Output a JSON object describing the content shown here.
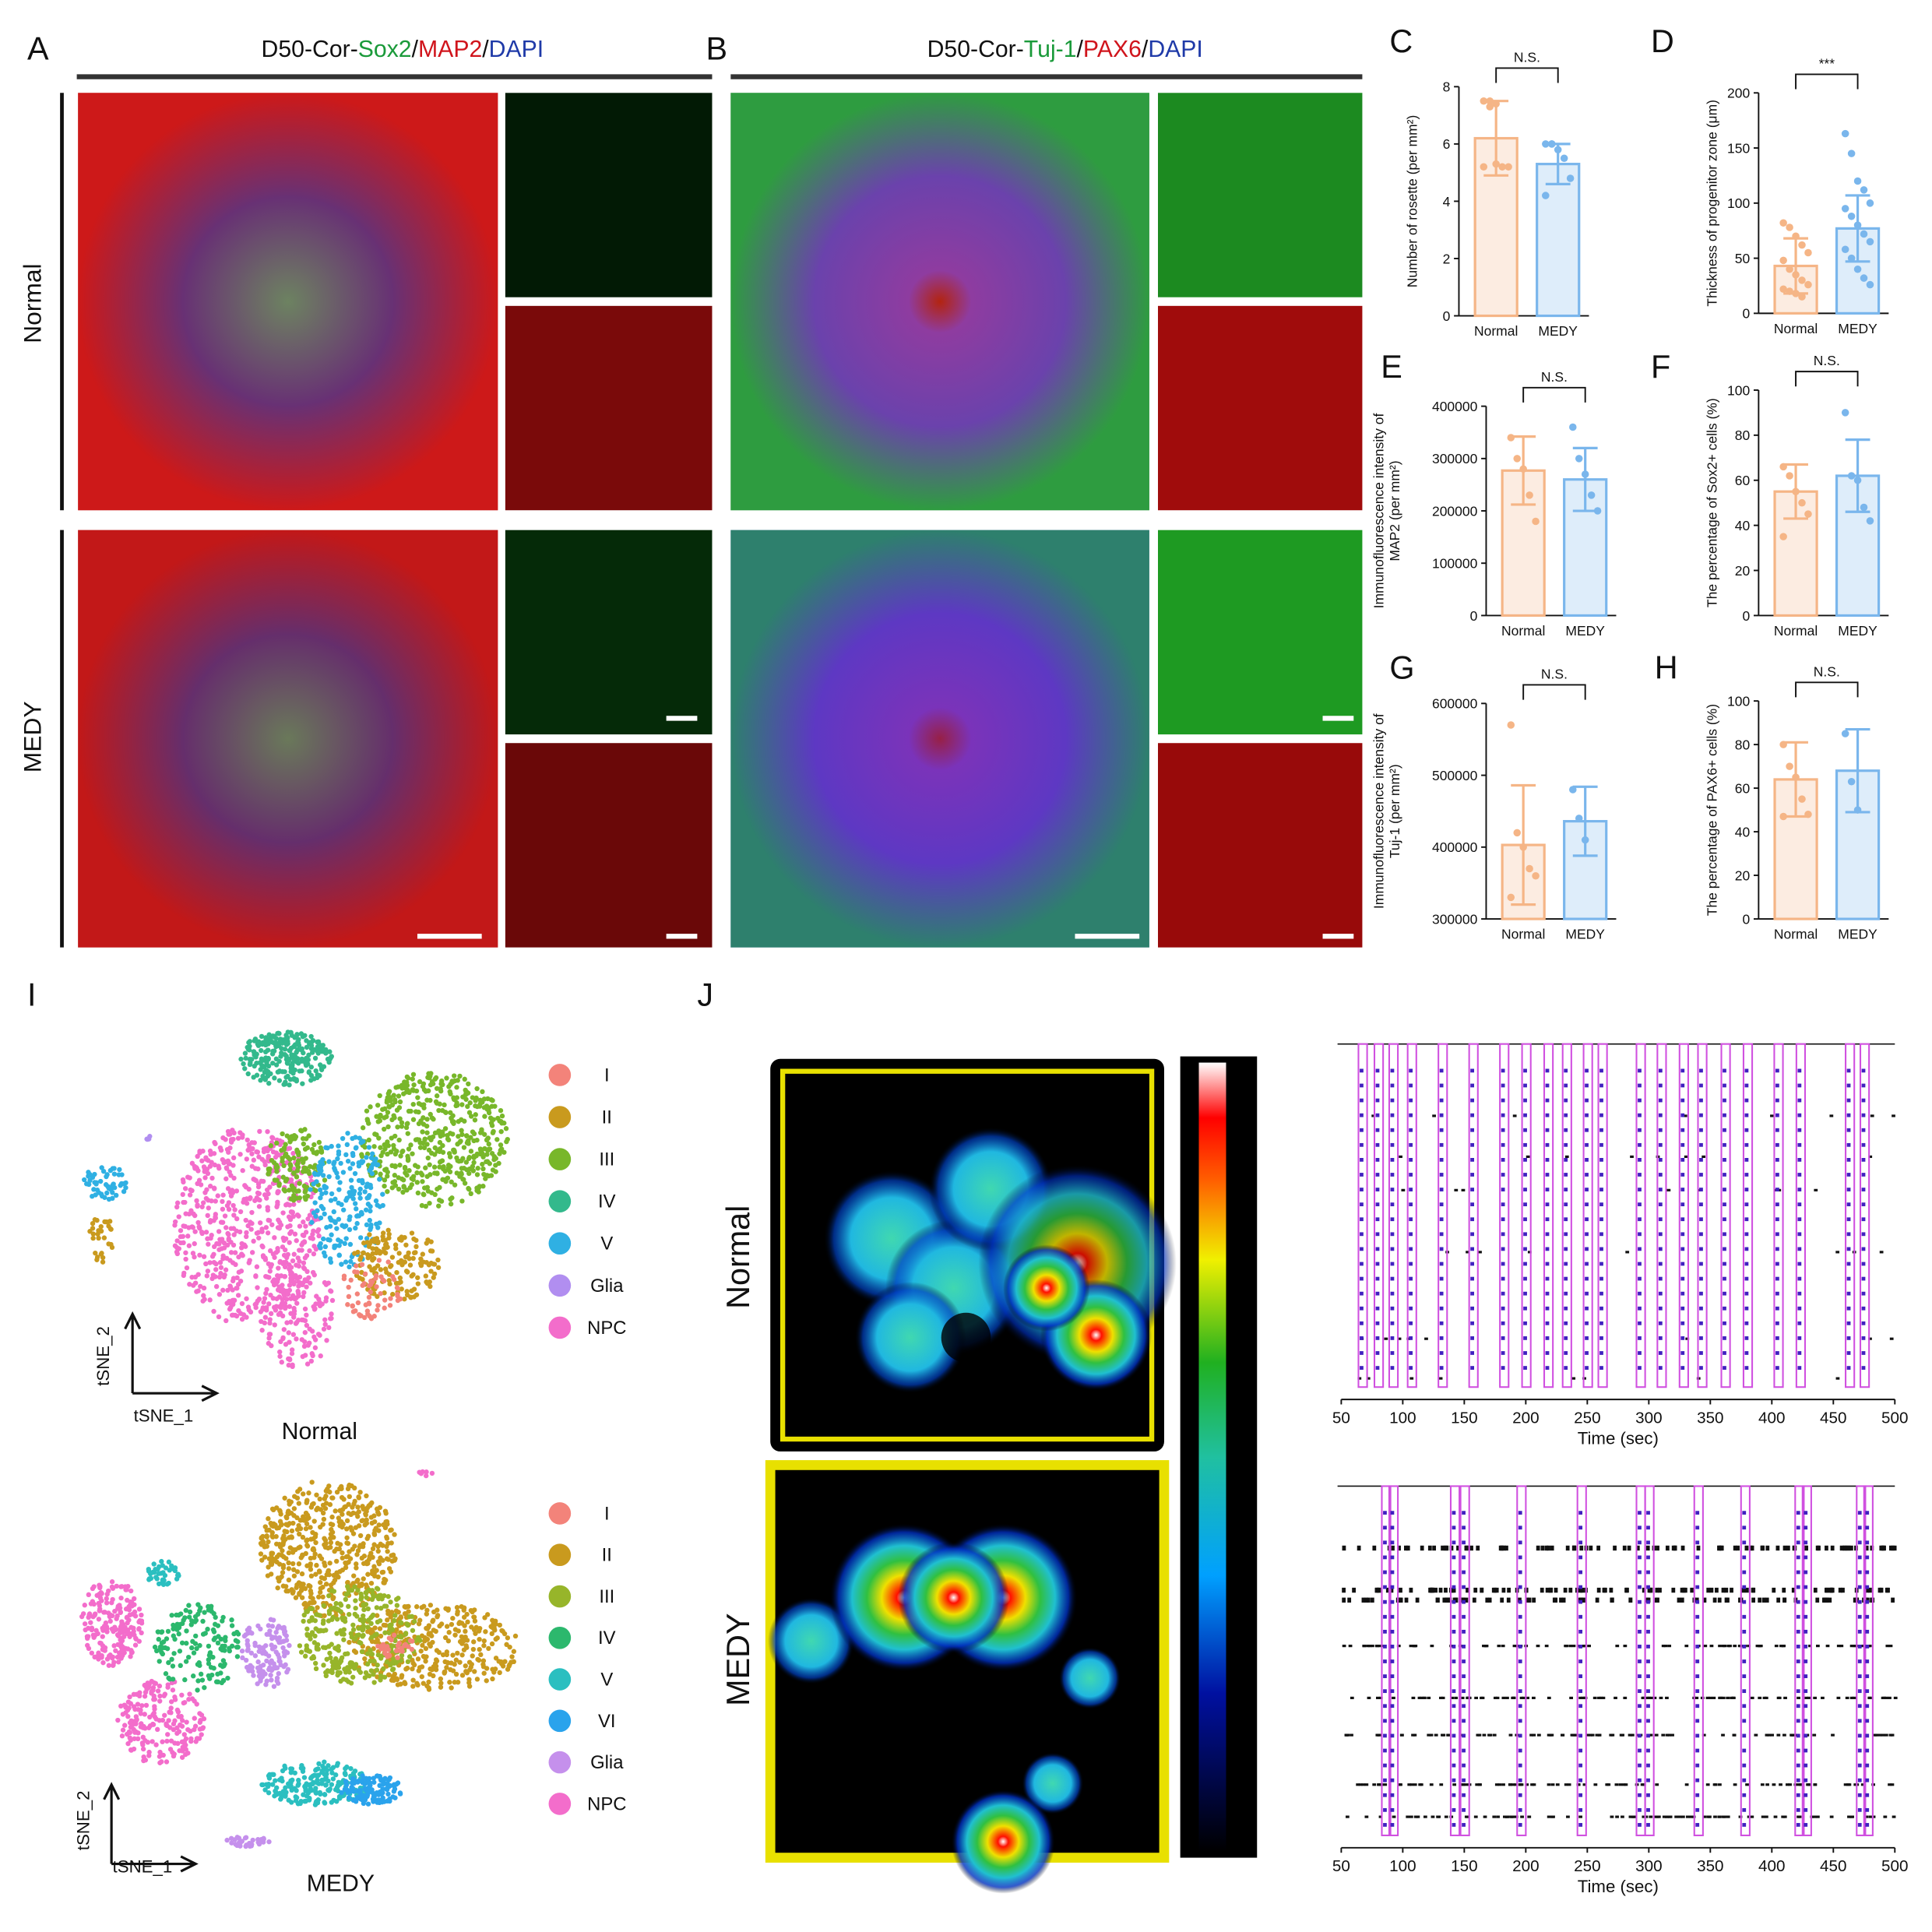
{
  "panel_labels": [
    "A",
    "B",
    "C",
    "D",
    "E",
    "F",
    "G",
    "H",
    "I",
    "J"
  ],
  "panel_a": {
    "title": [
      {
        "text": "D50-Cor-",
        "color": "#111111"
      },
      {
        "text": "Sox2",
        "color": "#1a9a3a"
      },
      {
        "text": "/",
        "color": "#111111"
      },
      {
        "text": "MAP2",
        "color": "#d0141c"
      },
      {
        "text": "/",
        "color": "#111111"
      },
      {
        "text": "DAPI",
        "color": "#1f3aa8"
      }
    ],
    "rows": [
      "Normal",
      "MEDY"
    ]
  },
  "panel_b": {
    "title": [
      {
        "text": "D50-Cor-",
        "color": "#111111"
      },
      {
        "text": "Tuj-1",
        "color": "#1a9a3a"
      },
      {
        "text": "/",
        "color": "#111111"
      },
      {
        "text": "PAX6",
        "color": "#d0141c"
      },
      {
        "text": "/",
        "color": "#111111"
      },
      {
        "text": "DAPI",
        "color": "#1f3aa8"
      }
    ]
  },
  "chart_data": [
    {
      "type": "bar",
      "ylabel": "Number of rosette (per mm²)",
      "categories": [
        "Normal",
        "MEDY"
      ],
      "colors": [
        "#f5b586",
        "#7ab6ec"
      ],
      "values": [
        6.2,
        5.3
      ],
      "errors": [
        1.3,
        0.7
      ],
      "points": [
        [
          7.5,
          7.5,
          7.4,
          5.2,
          5.2,
          5.2,
          7.3,
          5.3
        ],
        [
          6,
          6,
          5.8,
          5.5,
          4.8,
          4.2,
          6
        ]
      ],
      "ylim": [
        0,
        8
      ],
      "yticks": [
        0,
        2,
        4,
        6,
        8
      ],
      "annotation": "N.S."
    },
    {
      "type": "bar",
      "ylabel": "Thickness of progenitor zone (μm)",
      "categories": [
        "Normal",
        "MEDY"
      ],
      "colors": [
        "#f5b586",
        "#7ab6ec"
      ],
      "values": [
        43,
        77
      ],
      "errors": [
        25,
        30
      ],
      "points": [
        [
          82,
          78,
          70,
          62,
          55,
          48,
          40,
          35,
          30,
          26,
          22,
          20,
          18,
          15
        ],
        [
          163,
          145,
          120,
          112,
          100,
          95,
          88,
          80,
          72,
          65,
          58,
          50,
          40,
          32,
          26
        ]
      ],
      "ylim": [
        0,
        200
      ],
      "yticks": [
        0,
        50,
        100,
        150,
        200
      ],
      "annotation": "***"
    },
    {
      "type": "bar",
      "ylabel": [
        "Immunofluorescence intensity of",
        "MAP2 (per mm²)"
      ],
      "categories": [
        "Normal",
        "MEDY"
      ],
      "colors": [
        "#f5b586",
        "#7ab6ec"
      ],
      "values": [
        277000,
        260000
      ],
      "errors": [
        65000,
        60000
      ],
      "points": [
        [
          340000,
          300000,
          280000,
          230000,
          180000
        ],
        [
          360000,
          300000,
          270000,
          230000,
          200000
        ]
      ],
      "ylim": [
        0,
        400000
      ],
      "yticks": [
        0,
        100000,
        200000,
        300000,
        400000
      ],
      "annotation": "N.S."
    },
    {
      "type": "bar",
      "ylabel": "The percentage of Sox2+ cells (%)",
      "categories": [
        "Normal",
        "MEDY"
      ],
      "colors": [
        "#f5b586",
        "#7ab6ec"
      ],
      "values": [
        55,
        62
      ],
      "errors": [
        12,
        16
      ],
      "points": [
        [
          66,
          62,
          55,
          50,
          45,
          35
        ],
        [
          90,
          62,
          60,
          48,
          42
        ]
      ],
      "ylim": [
        0,
        100
      ],
      "yticks": [
        0,
        20,
        40,
        60,
        80,
        100
      ],
      "annotation": "N.S."
    },
    {
      "type": "bar",
      "ylabel": [
        "Immunofluorescence intensity of",
        "Tuj-1 (per mm²)"
      ],
      "categories": [
        "Normal",
        "MEDY"
      ],
      "colors": [
        "#f5b586",
        "#7ab6ec"
      ],
      "values": [
        403000,
        436000
      ],
      "errors": [
        83000,
        48000
      ],
      "points": [
        [
          570000,
          420000,
          400000,
          370000,
          360000,
          330000
        ],
        [
          480000,
          440000,
          410000
        ]
      ],
      "ylim": [
        300000,
        600000
      ],
      "yticks": [
        300000,
        400000,
        500000,
        600000
      ],
      "annotation": "N.S."
    },
    {
      "type": "bar",
      "ylabel": "The percentage of PAX6+ cells (%)",
      "categories": [
        "Normal",
        "MEDY"
      ],
      "colors": [
        "#f5b586",
        "#7ab6ec"
      ],
      "values": [
        64,
        68
      ],
      "errors": [
        17,
        19
      ],
      "points": [
        [
          80,
          70,
          65,
          55,
          48,
          47
        ],
        [
          85,
          63,
          50
        ]
      ],
      "ylim": [
        0,
        100
      ],
      "yticks": [
        0,
        20,
        40,
        60,
        80,
        100
      ],
      "annotation": "N.S."
    }
  ],
  "tsne": [
    {
      "group": "Normal",
      "x_label": "tSNE_1",
      "y_label": "tSNE_2",
      "clusters": [
        {
          "name": "I",
          "color": "#f3837a"
        },
        {
          "name": "II",
          "color": "#c99a1e"
        },
        {
          "name": "III",
          "color": "#78b72a"
        },
        {
          "name": "IV",
          "color": "#33b98c"
        },
        {
          "name": "V",
          "color": "#2fb0e3"
        },
        {
          "name": "Glia",
          "color": "#b18ef0"
        },
        {
          "name": "NPC",
          "color": "#f36dcb"
        }
      ]
    },
    {
      "group": "MEDY",
      "x_label": "tSNE_1",
      "y_label": "tSNE_2",
      "clusters": [
        {
          "name": "I",
          "color": "#f3837a"
        },
        {
          "name": "II",
          "color": "#c99a1e"
        },
        {
          "name": "III",
          "color": "#97b52a"
        },
        {
          "name": "IV",
          "color": "#2cb86d"
        },
        {
          "name": "V",
          "color": "#2bbfc0"
        },
        {
          "name": "VI",
          "color": "#2aa3ec"
        },
        {
          "name": "Glia",
          "color": "#c590ec"
        },
        {
          "name": "NPC",
          "color": "#f36dcb"
        }
      ]
    }
  ],
  "panel_j": {
    "rows": [
      "Normal",
      "MEDY"
    ],
    "colorbar_max": "30",
    "colorbar_min": "0",
    "rasters": [
      {
        "xlabel": "Time (sec)",
        "xlim": [
          50,
          500
        ],
        "xticks": [
          50,
          100,
          150,
          200,
          250,
          300,
          350,
          400,
          450,
          500
        ],
        "bursts": [
          67,
          80,
          92,
          107,
          132,
          157,
          182,
          200,
          218,
          233,
          250,
          262,
          293,
          310,
          328,
          343,
          362,
          380,
          405,
          423,
          463,
          475
        ]
      },
      {
        "xlabel": "Time (sec)",
        "xlim": [
          50,
          500
        ],
        "xticks": [
          50,
          100,
          150,
          200,
          250,
          300,
          350,
          400,
          450,
          500
        ],
        "bursts": [
          86,
          92,
          142,
          150,
          196,
          245,
          293,
          300,
          340,
          378,
          422,
          428,
          472,
          478
        ]
      }
    ]
  }
}
